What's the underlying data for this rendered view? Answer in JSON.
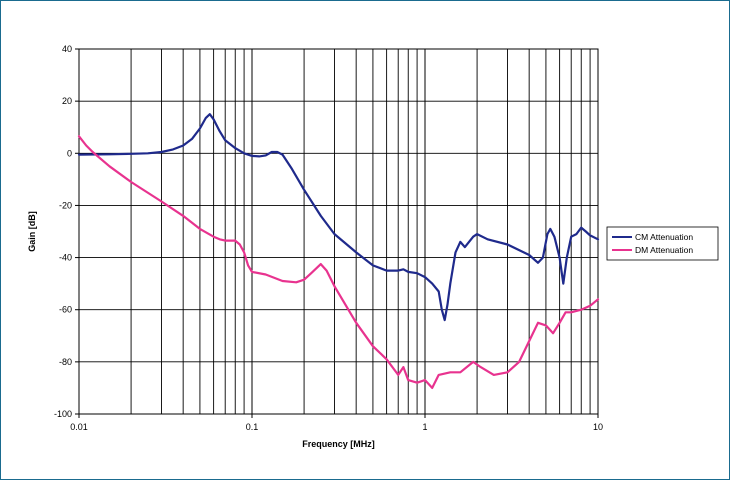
{
  "chart_data": {
    "type": "line",
    "title": "",
    "xlabel": "Frequency [MHz]",
    "ylabel": "Gain [dB]",
    "x_scale": "log",
    "xlim": [
      0.01,
      10
    ],
    "ylim": [
      -100,
      40
    ],
    "x_ticks": [
      "0.01",
      "0.1",
      "1",
      "10"
    ],
    "y_ticks": [
      "40",
      "20",
      "0",
      "-20",
      "-40",
      "-60",
      "-80",
      "-100"
    ],
    "grid": true,
    "legend_position": "right",
    "series": [
      {
        "name": "CM Attenuation",
        "color": "#1f2a8c",
        "points": [
          [
            0.01,
            -0.5
          ],
          [
            0.015,
            -0.4
          ],
          [
            0.02,
            -0.2
          ],
          [
            0.025,
            0
          ],
          [
            0.03,
            0.5
          ],
          [
            0.035,
            1.5
          ],
          [
            0.04,
            3
          ],
          [
            0.045,
            5.5
          ],
          [
            0.05,
            9.5
          ],
          [
            0.054,
            13.5
          ],
          [
            0.057,
            15
          ],
          [
            0.06,
            13
          ],
          [
            0.065,
            8.5
          ],
          [
            0.07,
            5
          ],
          [
            0.08,
            2
          ],
          [
            0.09,
            0
          ],
          [
            0.1,
            -1
          ],
          [
            0.11,
            -1.2
          ],
          [
            0.12,
            -0.8
          ],
          [
            0.13,
            0.5
          ],
          [
            0.14,
            0.5
          ],
          [
            0.15,
            -0.5
          ],
          [
            0.17,
            -6
          ],
          [
            0.2,
            -14
          ],
          [
            0.25,
            -24
          ],
          [
            0.3,
            -31
          ],
          [
            0.4,
            -38
          ],
          [
            0.5,
            -43
          ],
          [
            0.6,
            -45
          ],
          [
            0.7,
            -45
          ],
          [
            0.75,
            -44.5
          ],
          [
            0.8,
            -45.5
          ],
          [
            0.9,
            -46
          ],
          [
            1.0,
            -47.5
          ],
          [
            1.1,
            -50
          ],
          [
            1.2,
            -53
          ],
          [
            1.25,
            -60
          ],
          [
            1.3,
            -64
          ],
          [
            1.35,
            -58
          ],
          [
            1.4,
            -50
          ],
          [
            1.5,
            -38
          ],
          [
            1.6,
            -34
          ],
          [
            1.7,
            -36
          ],
          [
            1.9,
            -32
          ],
          [
            2.0,
            -31
          ],
          [
            2.3,
            -33
          ],
          [
            3.0,
            -35
          ],
          [
            4.0,
            -39
          ],
          [
            4.5,
            -42
          ],
          [
            4.8,
            -40
          ],
          [
            5.1,
            -31
          ],
          [
            5.3,
            -29
          ],
          [
            5.6,
            -32
          ],
          [
            6.0,
            -40
          ],
          [
            6.3,
            -50
          ],
          [
            6.6,
            -40
          ],
          [
            7.0,
            -32
          ],
          [
            7.5,
            -31
          ],
          [
            8.0,
            -28.5
          ],
          [
            8.5,
            -30
          ],
          [
            9.0,
            -31.5
          ],
          [
            10.0,
            -33
          ]
        ]
      },
      {
        "name": "DM Attenuation",
        "color": "#e8338f",
        "points": [
          [
            0.01,
            6.5
          ],
          [
            0.011,
            3
          ],
          [
            0.012,
            0.5
          ],
          [
            0.015,
            -5
          ],
          [
            0.02,
            -11
          ],
          [
            0.03,
            -18.5
          ],
          [
            0.04,
            -24
          ],
          [
            0.05,
            -29
          ],
          [
            0.06,
            -32
          ],
          [
            0.065,
            -33
          ],
          [
            0.07,
            -33.5
          ],
          [
            0.075,
            -33.5
          ],
          [
            0.08,
            -33.5
          ],
          [
            0.085,
            -35
          ],
          [
            0.09,
            -38
          ],
          [
            0.095,
            -43
          ],
          [
            0.1,
            -45.5
          ],
          [
            0.12,
            -46.5
          ],
          [
            0.15,
            -49
          ],
          [
            0.18,
            -49.5
          ],
          [
            0.2,
            -48.5
          ],
          [
            0.22,
            -46
          ],
          [
            0.25,
            -42.5
          ],
          [
            0.27,
            -45
          ],
          [
            0.3,
            -51
          ],
          [
            0.4,
            -65
          ],
          [
            0.5,
            -74
          ],
          [
            0.6,
            -79
          ],
          [
            0.7,
            -85
          ],
          [
            0.75,
            -82
          ],
          [
            0.8,
            -87
          ],
          [
            0.9,
            -88
          ],
          [
            1.0,
            -87
          ],
          [
            1.1,
            -90
          ],
          [
            1.2,
            -85
          ],
          [
            1.4,
            -84
          ],
          [
            1.6,
            -84
          ],
          [
            1.9,
            -80
          ],
          [
            2.1,
            -82
          ],
          [
            2.5,
            -85
          ],
          [
            3.0,
            -84
          ],
          [
            3.5,
            -80
          ],
          [
            4.0,
            -72
          ],
          [
            4.5,
            -65
          ],
          [
            5.0,
            -66
          ],
          [
            5.5,
            -69
          ],
          [
            6.0,
            -65
          ],
          [
            6.5,
            -61
          ],
          [
            7.0,
            -61
          ],
          [
            8.0,
            -60
          ],
          [
            9.0,
            -58.5
          ],
          [
            10.0,
            -56
          ]
        ]
      }
    ]
  }
}
